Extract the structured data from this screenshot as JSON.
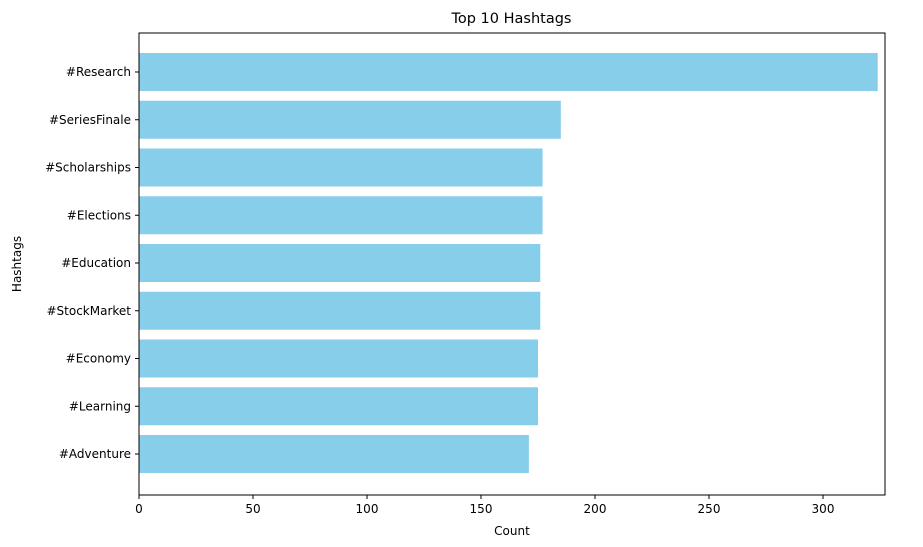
{
  "chart_data": {
    "type": "bar",
    "orientation": "horizontal",
    "title": "Top 10 Hashtags",
    "xlabel": "Count",
    "ylabel": "Hashtags",
    "categories": [
      "#Research",
      "#SeriesFinale",
      "#Scholarships",
      "#Elections",
      "#Education",
      "#StockMarket",
      "#Economy",
      "#Learning",
      "#Adventure"
    ],
    "values": [
      324,
      185,
      177,
      177,
      176,
      176,
      175,
      175,
      171
    ],
    "xlim": [
      0,
      340
    ],
    "xticks": [
      0,
      50,
      100,
      150,
      200,
      250,
      300
    ],
    "bar_color": "#87CEEB",
    "grid": false
  }
}
